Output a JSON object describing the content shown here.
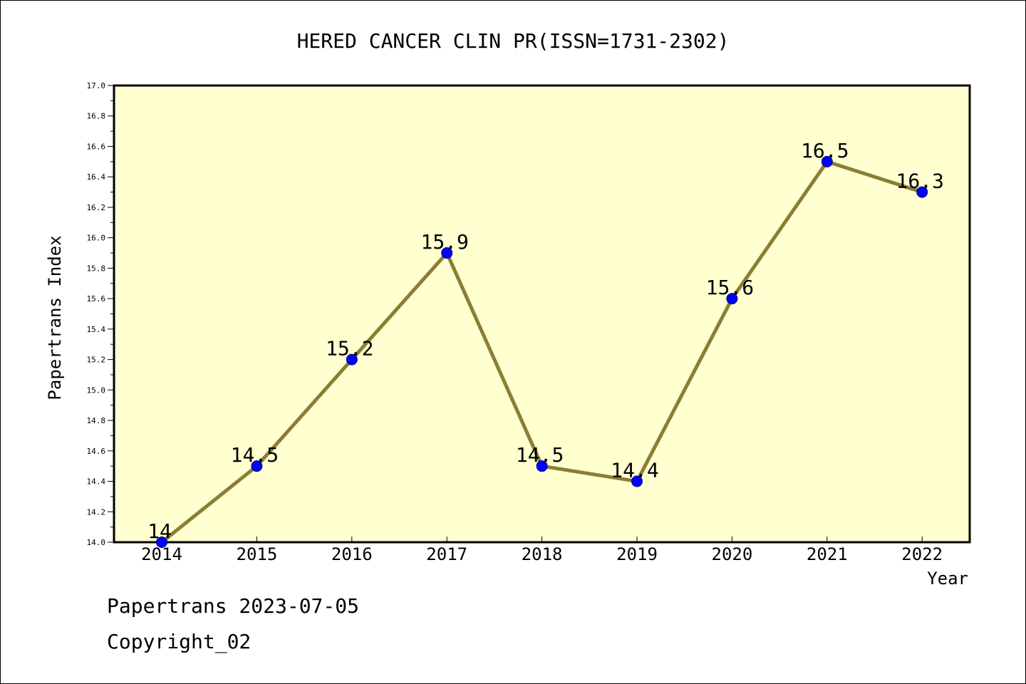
{
  "chart_data": {
    "type": "line",
    "title": "HERED CANCER CLIN PR(ISSN=1731-2302)",
    "xlabel": "Year",
    "ylabel": "Papertrans Index",
    "categories": [
      "2014",
      "2015",
      "2016",
      "2017",
      "2018",
      "2019",
      "2020",
      "2021",
      "2022"
    ],
    "values": [
      14,
      14.5,
      15.2,
      15.9,
      14.5,
      14.4,
      15.6,
      16.5,
      16.3
    ],
    "data_labels": [
      "14",
      "14.5",
      "15.2",
      "15.9",
      "14.5",
      "14.4",
      "15.6",
      "16.5",
      "16.3"
    ],
    "ylim": [
      14.0,
      17.0
    ],
    "yticks": [
      "14.0",
      "14.2",
      "14.4",
      "14.6",
      "14.8",
      "15.0",
      "15.2",
      "15.4",
      "15.6",
      "15.8",
      "16.0",
      "16.2",
      "16.4",
      "16.6",
      "16.8",
      "17.0"
    ],
    "grid": false,
    "colors": {
      "plot_background": "#ffffd0",
      "line": "#8b7d35",
      "marker": "#0000ff",
      "marker_edge": "#000080"
    }
  },
  "footer": {
    "date_line": "Papertrans 2023-07-05",
    "copyright_line": "Copyright_02"
  }
}
